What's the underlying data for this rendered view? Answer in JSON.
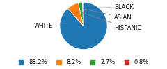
{
  "chart_data": {
    "type": "pie",
    "categories": [
      "WHITE",
      "HISPANIC",
      "ASIAN",
      "BLACK"
    ],
    "values": [
      88.2,
      8.2,
      2.7,
      0.8
    ],
    "value_labels": [
      "88.2%",
      "8.2%",
      "2.7%",
      "0.8%"
    ],
    "legend": "lower center"
  }
}
